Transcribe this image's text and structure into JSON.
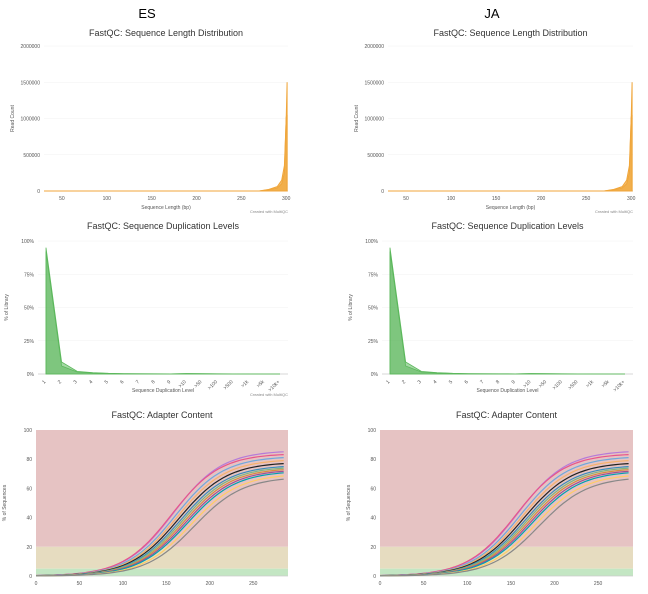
{
  "columns": [
    {
      "label": "ES"
    },
    {
      "label": "JA"
    }
  ],
  "colors": {
    "length": "#f0a63b",
    "dup": "#5cb85c",
    "band_bad": "#e6c3c3",
    "band_warn": "#e6dcc0",
    "band_good": "#c3e6c3",
    "axis": "#cccccc",
    "adapter_series": [
      "#b57bd9",
      "#e8558a",
      "#6fa8dc",
      "#f6b26b",
      "#222222",
      "#3c8dbc",
      "#7fb77e",
      "#d98c3f",
      "#a05195",
      "#00a0b0",
      "#ffcc66",
      "#888888"
    ]
  },
  "chart_data": [
    {
      "type": "area",
      "panel": "ES",
      "title": "FastQC: Sequence Length Distribution",
      "xlabel": "Sequence Length (bp)",
      "ylabel": "Read Count",
      "credit": "Created with MultiQC",
      "xlim": [
        30,
        302
      ],
      "ylim": [
        0,
        2000000
      ],
      "xticks": [
        "50",
        "100",
        "150",
        "200",
        "250",
        "300"
      ],
      "yticks": [
        "0",
        "500000",
        "1000000",
        "1500000",
        "2000000"
      ],
      "series": [
        {
          "x": [
            30,
            100,
            200,
            270,
            280,
            290,
            295,
            298,
            300,
            301
          ],
          "y": [
            0,
            0,
            0,
            0,
            20000,
            60000,
            150000,
            350000,
            1000000,
            1500000
          ]
        },
        {
          "x": [
            30,
            100,
            200,
            270,
            280,
            290,
            295,
            298,
            300,
            301
          ],
          "y": [
            0,
            0,
            0,
            0,
            15000,
            40000,
            100000,
            250000,
            1020000,
            1050000
          ]
        }
      ]
    },
    {
      "type": "area",
      "panel": "JA",
      "title": "FastQC: Sequence Length Distribution",
      "xlabel": "Sequence Length (bp)",
      "ylabel": "Read Count",
      "credit": "Created with MultiQC",
      "xlim": [
        30,
        302
      ],
      "ylim": [
        0,
        2000000
      ],
      "xticks": [
        "50",
        "100",
        "150",
        "200",
        "250",
        "300"
      ],
      "yticks": [
        "0",
        "500000",
        "1000000",
        "1500000",
        "2000000"
      ],
      "series": [
        {
          "x": [
            30,
            100,
            200,
            270,
            280,
            290,
            295,
            298,
            300,
            301
          ],
          "y": [
            0,
            0,
            0,
            0,
            20000,
            60000,
            150000,
            350000,
            1000000,
            1500000
          ]
        },
        {
          "x": [
            30,
            100,
            200,
            270,
            280,
            290,
            295,
            298,
            300,
            301
          ],
          "y": [
            0,
            0,
            0,
            0,
            15000,
            40000,
            100000,
            250000,
            1020000,
            1050000
          ]
        }
      ]
    },
    {
      "type": "area",
      "panel": "ES",
      "title": "FastQC: Sequence Duplication Levels",
      "xlabel": "Sequence Duplication Level",
      "ylabel": "% of Library",
      "credit": "Created with MultiQC",
      "ylim": [
        0,
        100
      ],
      "categories": [
        "1",
        "2",
        "3",
        "4",
        "5",
        "6",
        "7",
        "8",
        "9",
        ">10",
        ">50",
        ">100",
        ">500",
        ">1k",
        ">5k",
        ">10k+"
      ],
      "yticks": [
        "0%",
        "25%",
        "50%",
        "75%",
        "100%"
      ],
      "series": [
        {
          "values": [
            95,
            9,
            2,
            1,
            0.5,
            0.3,
            0.2,
            0.2,
            0.1,
            0.4,
            0.3,
            0.2,
            0.1,
            0.1,
            0,
            0
          ]
        },
        {
          "values": [
            92,
            6,
            1.5,
            0.8,
            0.4,
            0.2,
            0.2,
            0.1,
            0.1,
            0.3,
            0.2,
            0.1,
            0.1,
            0,
            0,
            0
          ]
        }
      ]
    },
    {
      "type": "area",
      "panel": "JA",
      "title": "FastQC: Sequence Duplication Levels",
      "xlabel": "Sequence Duplication Level",
      "ylabel": "% of Library",
      "credit": "",
      "ylim": [
        0,
        100
      ],
      "categories": [
        "1",
        "2",
        "3",
        "4",
        "5",
        "6",
        "7",
        "8",
        "9",
        ">10",
        ">50",
        ">100",
        ">500",
        ">1k",
        ">5k",
        ">10k+"
      ],
      "yticks": [
        "0%",
        "25%",
        "50%",
        "75%",
        "100%"
      ],
      "series": [
        {
          "values": [
            95,
            9,
            2,
            1,
            0.5,
            0.3,
            0.2,
            0.2,
            0.1,
            0.4,
            0.3,
            0.2,
            0.1,
            0.1,
            0,
            0
          ]
        },
        {
          "values": [
            92,
            6,
            1.5,
            0.8,
            0.4,
            0.2,
            0.2,
            0.1,
            0.1,
            0.3,
            0.2,
            0.1,
            0.1,
            0,
            0,
            0
          ]
        }
      ]
    },
    {
      "type": "line",
      "panel": "ES",
      "title": "FastQC: Adapter Content",
      "xlabel": "",
      "ylabel": "% of Sequences",
      "xlim": [
        0,
        290
      ],
      "ylim": [
        0,
        100
      ],
      "xticks": [
        "0",
        "50",
        "100",
        "150",
        "200",
        "250"
      ],
      "yticks": [
        "0",
        "20",
        "40",
        "60",
        "80",
        "100"
      ],
      "bands": [
        {
          "from": 20,
          "to": 100,
          "level": "bad"
        },
        {
          "from": 5,
          "to": 20,
          "level": "warn"
        },
        {
          "from": 0,
          "to": 5,
          "level": "good"
        }
      ],
      "series": [
        {
          "plateau": 86,
          "mid": 158
        },
        {
          "plateau": 84,
          "mid": 156
        },
        {
          "plateau": 82,
          "mid": 160
        },
        {
          "plateau": 80,
          "mid": 162
        },
        {
          "plateau": 78,
          "mid": 164
        },
        {
          "plateau": 76,
          "mid": 166
        },
        {
          "plateau": 75,
          "mid": 168
        },
        {
          "plateau": 74,
          "mid": 170
        },
        {
          "plateau": 73,
          "mid": 172
        },
        {
          "plateau": 72,
          "mid": 174
        },
        {
          "plateau": 70,
          "mid": 178
        },
        {
          "plateau": 68,
          "mid": 182
        }
      ]
    },
    {
      "type": "line",
      "panel": "JA",
      "title": "FastQC: Adapter Content",
      "xlabel": "",
      "ylabel": "% of Sequences",
      "xlim": [
        0,
        290
      ],
      "ylim": [
        0,
        100
      ],
      "xticks": [
        "0",
        "50",
        "100",
        "150",
        "200",
        "250"
      ],
      "yticks": [
        "0",
        "20",
        "40",
        "60",
        "80",
        "100"
      ],
      "bands": [
        {
          "from": 20,
          "to": 100,
          "level": "bad"
        },
        {
          "from": 5,
          "to": 20,
          "level": "warn"
        },
        {
          "from": 0,
          "to": 5,
          "level": "good"
        }
      ],
      "series": [
        {
          "plateau": 86,
          "mid": 158
        },
        {
          "plateau": 84,
          "mid": 156
        },
        {
          "plateau": 82,
          "mid": 160
        },
        {
          "plateau": 80,
          "mid": 162
        },
        {
          "plateau": 78,
          "mid": 164
        },
        {
          "plateau": 76,
          "mid": 166
        },
        {
          "plateau": 75,
          "mid": 168
        },
        {
          "plateau": 74,
          "mid": 170
        },
        {
          "plateau": 73,
          "mid": 172
        },
        {
          "plateau": 72,
          "mid": 174
        },
        {
          "plateau": 70,
          "mid": 178
        },
        {
          "plateau": 68,
          "mid": 182
        }
      ]
    }
  ]
}
